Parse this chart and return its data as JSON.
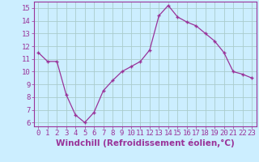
{
  "x": [
    0,
    1,
    2,
    3,
    4,
    5,
    6,
    7,
    8,
    9,
    10,
    11,
    12,
    13,
    14,
    15,
    16,
    17,
    18,
    19,
    20,
    21,
    22,
    23
  ],
  "y": [
    11.5,
    10.8,
    10.8,
    8.2,
    6.6,
    6.0,
    6.8,
    8.5,
    9.3,
    10.0,
    10.4,
    10.8,
    11.7,
    14.4,
    15.2,
    14.3,
    13.9,
    13.6,
    13.0,
    12.4,
    11.5,
    10.0,
    9.8,
    9.5
  ],
  "line_color": "#993399",
  "marker": "+",
  "bg_color": "#cceeff",
  "grid_color": "#aacccc",
  "xlabel": "Windchill (Refroidissement éolien,°C)",
  "xlabel_color": "#993399",
  "tick_color": "#993399",
  "xlim": [
    -0.5,
    23.5
  ],
  "ylim": [
    5.7,
    15.5
  ],
  "yticks": [
    6,
    7,
    8,
    9,
    10,
    11,
    12,
    13,
    14,
    15
  ],
  "xticks": [
    0,
    1,
    2,
    3,
    4,
    5,
    6,
    7,
    8,
    9,
    10,
    11,
    12,
    13,
    14,
    15,
    16,
    17,
    18,
    19,
    20,
    21,
    22,
    23
  ],
  "spine_color": "#993399",
  "tick_font_size": 6.5,
  "xlabel_font_size": 7.5
}
